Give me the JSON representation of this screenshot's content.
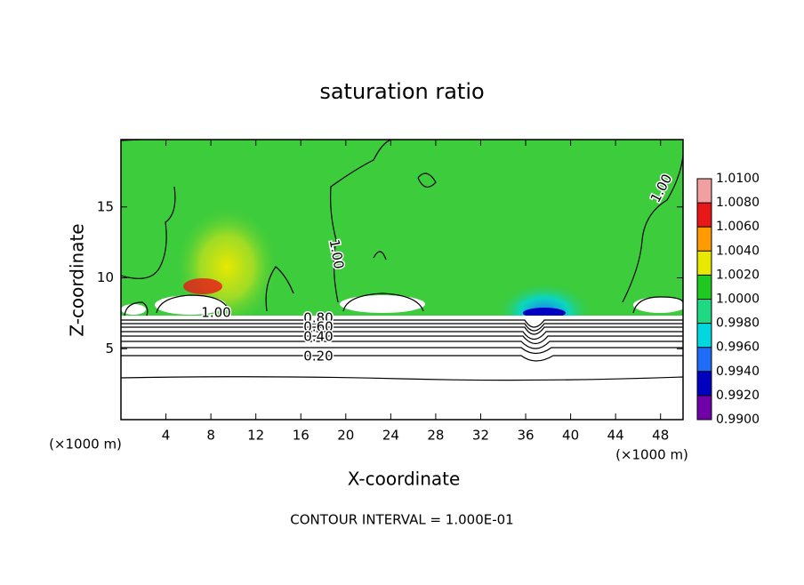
{
  "chart_data": {
    "type": "contour",
    "title": "saturation ratio",
    "x_label": "X-coordinate",
    "y_label": "Z-coordinate",
    "x_unit_left": "(×1000 m)",
    "x_unit_right": "(×1000 m)",
    "footer": "CONTOUR INTERVAL = 1.000E-01",
    "xlim": [
      0,
      50
    ],
    "xticks": [
      4,
      8,
      12,
      16,
      20,
      24,
      28,
      32,
      36,
      40,
      44,
      48
    ],
    "ylim": [
      0,
      19.75
    ],
    "yticks": [
      5,
      10,
      15
    ],
    "contour_labels": [
      "1.00",
      "1.00",
      "1.00",
      "0.80",
      "0.60",
      "0.40",
      "0.20"
    ],
    "colorbar": {
      "lim": [
        0.99,
        1.01
      ],
      "colors": [
        "#7000a8",
        "#0000c0",
        "#1e6cf8",
        "#00d8e0",
        "#1ed882",
        "#22c822",
        "#e8e800",
        "#ff9a00",
        "#e81818",
        "#f0a0a0"
      ],
      "ticks": [
        {
          "value": 0.99,
          "label": "0.9900"
        },
        {
          "value": 0.992,
          "label": "0.9920"
        },
        {
          "value": 0.994,
          "label": "0.9940"
        },
        {
          "value": 0.996,
          "label": "0.9960"
        },
        {
          "value": 0.998,
          "label": "0.9980"
        },
        {
          "value": 1.0,
          "label": "1.0000"
        },
        {
          "value": 1.002,
          "label": "1.0020"
        },
        {
          "value": 1.004,
          "label": "1.0040"
        },
        {
          "value": 1.006,
          "label": "1.0060"
        },
        {
          "value": 1.008,
          "label": "1.0080"
        },
        {
          "value": 1.01,
          "label": "1.0100"
        }
      ]
    }
  }
}
